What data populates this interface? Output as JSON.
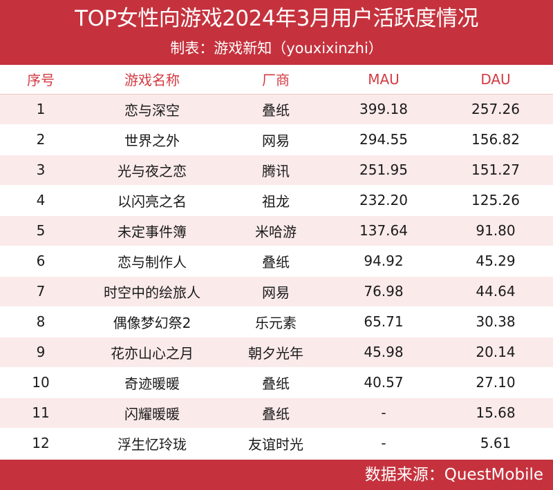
{
  "header": {
    "title": "TOP女性向游戏2024年3月用户活跃度情况",
    "subtitle": "制表：游戏新知（youxixinzhi）"
  },
  "table": {
    "columns": [
      "序号",
      "游戏名称",
      "厂商",
      "MAU",
      "DAU"
    ],
    "rows": [
      [
        "1",
        "恋与深空",
        "叠纸",
        "399.18",
        "257.26"
      ],
      [
        "2",
        "世界之外",
        "网易",
        "294.55",
        "156.82"
      ],
      [
        "3",
        "光与夜之恋",
        "腾讯",
        "251.95",
        "151.27"
      ],
      [
        "4",
        "以闪亮之名",
        "祖龙",
        "232.20",
        "125.26"
      ],
      [
        "5",
        "未定事件簿",
        "米哈游",
        "137.64",
        "91.80"
      ],
      [
        "6",
        "恋与制作人",
        "叠纸",
        "94.92",
        "45.29"
      ],
      [
        "7",
        "时空中的绘旅人",
        "网易",
        "76.98",
        "44.64"
      ],
      [
        "8",
        "偶像梦幻祭2",
        "乐元素",
        "65.71",
        "30.38"
      ],
      [
        "9",
        "花亦山心之月",
        "朝夕光年",
        "45.98",
        "20.14"
      ],
      [
        "10",
        "奇迹暖暖",
        "叠纸",
        "40.57",
        "27.10"
      ],
      [
        "11",
        "闪耀暖暖",
        "叠纸",
        "-",
        "15.68"
      ],
      [
        "12",
        "浮生忆玲珑",
        "友谊时光",
        "-",
        "5.61"
      ]
    ]
  },
  "footer": {
    "source": "数据来源：QuestMobile"
  },
  "colors": {
    "accent": "#c5323d",
    "header_text": "#d23a42",
    "stripe": "#fbeaea"
  }
}
